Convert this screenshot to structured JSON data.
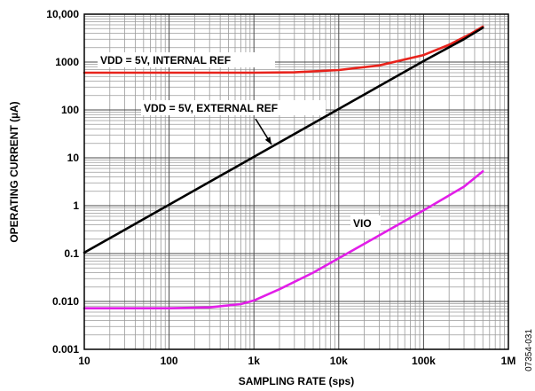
{
  "chart_data": {
    "type": "line",
    "x_scale": "log",
    "y_scale": "log",
    "xlabel": "SAMPLING RATE (sps)",
    "ylabel": "OPERATING CURRENT (µA)",
    "xlim": [
      10,
      1000000
    ],
    "ylim": [
      0.001,
      10000
    ],
    "grid": true,
    "x_ticks": [
      {
        "value": 10,
        "label": "10"
      },
      {
        "value": 100,
        "label": "100"
      },
      {
        "value": 1000,
        "label": "1k"
      },
      {
        "value": 10000,
        "label": "10k"
      },
      {
        "value": 100000,
        "label": "100k"
      },
      {
        "value": 1000000,
        "label": "1M"
      }
    ],
    "y_ticks": [
      {
        "value": 0.001,
        "label": "0.001"
      },
      {
        "value": 0.01,
        "label": "0.010"
      },
      {
        "value": 0.1,
        "label": "0.1"
      },
      {
        "value": 1,
        "label": "1"
      },
      {
        "value": 10,
        "label": "10"
      },
      {
        "value": 100,
        "label": "100"
      },
      {
        "value": 1000,
        "label": "1000"
      },
      {
        "value": 10000,
        "label": "10,000"
      }
    ],
    "series": [
      {
        "name": "VDD = 5V, INTERNAL REF",
        "color": "#e8231c",
        "points": [
          [
            10,
            600
          ],
          [
            100,
            600
          ],
          [
            1000,
            600
          ],
          [
            3000,
            610
          ],
          [
            10000,
            680
          ],
          [
            30000,
            850
          ],
          [
            100000,
            1400
          ],
          [
            200000,
            2300
          ],
          [
            350000,
            3800
          ],
          [
            500000,
            5500
          ]
        ]
      },
      {
        "name": "VDD = 5V, EXTERNAL REF",
        "color": "#000000",
        "points": [
          [
            10,
            0.105
          ],
          [
            100,
            1.05
          ],
          [
            1000,
            10.5
          ],
          [
            10000,
            105
          ],
          [
            100000,
            1050
          ],
          [
            300000,
            3000
          ],
          [
            500000,
            5200
          ]
        ]
      },
      {
        "name": "VIO",
        "color": "#e21ee8",
        "points": [
          [
            10,
            0.0072
          ],
          [
            100,
            0.0072
          ],
          [
            300,
            0.0075
          ],
          [
            700,
            0.0088
          ],
          [
            1000,
            0.0105
          ],
          [
            2000,
            0.018
          ],
          [
            5000,
            0.04
          ],
          [
            10000,
            0.08
          ],
          [
            30000,
            0.24
          ],
          [
            100000,
            0.8
          ],
          [
            300000,
            2.5
          ],
          [
            500000,
            5.2
          ]
        ]
      }
    ],
    "annotations": [
      {
        "text": "VDD = 5V, INTERNAL REF",
        "series": "VDD = 5V, INTERNAL REF"
      },
      {
        "text": "VDD = 5V, EXTERNAL REF",
        "series": "VDD = 5V, EXTERNAL REF",
        "arrow": true
      },
      {
        "text": "VIO",
        "series": "VIO"
      }
    ],
    "figure_id": "07354-031"
  }
}
